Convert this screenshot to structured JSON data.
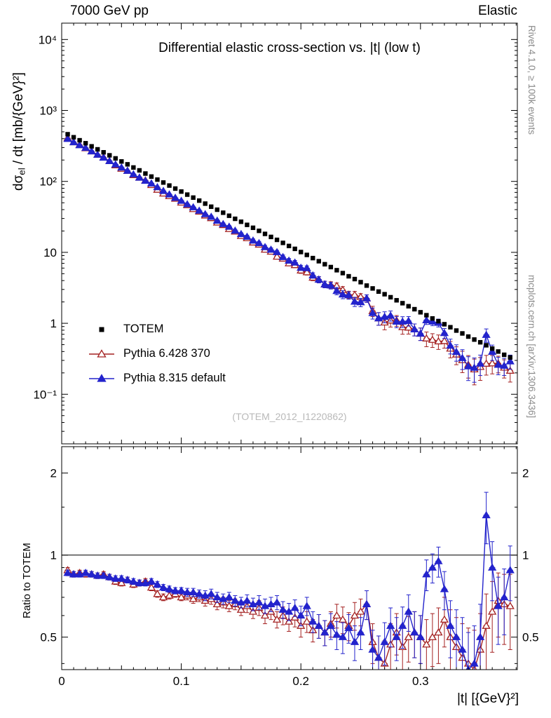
{
  "page": {
    "header_left": "7000 GeV pp",
    "header_right": "Elastic",
    "watermark": "(TOTEM_2012_I1220862)",
    "side_top": "Rivet 4.1.0, ≥ 100k events",
    "side_bottom": "mcplots.cern.ch [arXiv:1306.3436]"
  },
  "chart_data": {
    "type": "scatter",
    "title": "Differential elastic cross-section vs. |t| (low t)",
    "xlabel": "|t| [{GeV}²]",
    "ylabel_top_parts": {
      "pre": "dσ",
      "sub": "el",
      "post": " / dt [mb/{GeV}²]"
    },
    "ylabel_bottom": "Ratio to TOTEM",
    "xlim": [
      0,
      0.381
    ],
    "ylim_top": [
      0.02,
      17000
    ],
    "ylim_bottom": [
      0.38,
      2.5
    ],
    "grid": false,
    "legend_position": "inside-left-middle",
    "x_ticks": [
      {
        "v": 0,
        "label": "0"
      },
      {
        "v": 0.1,
        "label": "0.1"
      },
      {
        "v": 0.2,
        "label": "0.2"
      },
      {
        "v": 0.3,
        "label": "0.3"
      }
    ],
    "y_ticks_top": [
      {
        "v": 0.1,
        "label": "10⁻¹"
      },
      {
        "v": 1,
        "label": "1"
      },
      {
        "v": 10,
        "label": "10"
      },
      {
        "v": 100,
        "label": "10²"
      },
      {
        "v": 1000,
        "label": "10³"
      },
      {
        "v": 10000,
        "label": "10⁴"
      }
    ],
    "y_ticks_bottom": [
      {
        "v": 0.5,
        "label": "0.5"
      },
      {
        "v": 1,
        "label": "1"
      },
      {
        "v": 2,
        "label": "2"
      }
    ],
    "y_minor_ticks_bottom": [
      0.4,
      0.6,
      0.7,
      0.8,
      0.9,
      1.5
    ],
    "ratio_reference": 1,
    "x": [
      0.005,
      0.01,
      0.015,
      0.02,
      0.025,
      0.03,
      0.035,
      0.04,
      0.045,
      0.05,
      0.055,
      0.06,
      0.065,
      0.07,
      0.075,
      0.08,
      0.085,
      0.09,
      0.095,
      0.1,
      0.105,
      0.11,
      0.115,
      0.12,
      0.125,
      0.13,
      0.135,
      0.14,
      0.145,
      0.15,
      0.155,
      0.16,
      0.165,
      0.17,
      0.175,
      0.18,
      0.185,
      0.19,
      0.195,
      0.2,
      0.205,
      0.21,
      0.215,
      0.22,
      0.225,
      0.23,
      0.235,
      0.24,
      0.245,
      0.25,
      0.255,
      0.26,
      0.265,
      0.27,
      0.275,
      0.28,
      0.285,
      0.29,
      0.295,
      0.3,
      0.305,
      0.31,
      0.315,
      0.32,
      0.325,
      0.33,
      0.335,
      0.34,
      0.345,
      0.35,
      0.355,
      0.36,
      0.365,
      0.37,
      0.375
    ],
    "series": [
      {
        "name": "TOTEM",
        "marker": "square",
        "color": "#000000",
        "line": false,
        "y": [
          462,
          419,
          380,
          345,
          312,
          283,
          257,
          233,
          211,
          191,
          174,
          157,
          143,
          129,
          117,
          106,
          96.4,
          87.4,
          79.2,
          71.9,
          65.1,
          59.1,
          53.6,
          48.6,
          44,
          39.9,
          36.2,
          32.8,
          29.7,
          27,
          24.4,
          22.2,
          20.1,
          18.2,
          16.5,
          15,
          13.6,
          12.3,
          11.2,
          10.1,
          9.2,
          8.3,
          7.5,
          6.8,
          6.2,
          5.6,
          5.1,
          4.6,
          4.2,
          3.8,
          3.4,
          3.1,
          2.8,
          2.57,
          2.33,
          2.11,
          1.92,
          1.74,
          1.58,
          1.43,
          1.3,
          1.17,
          1.07,
          0.97,
          0.88,
          0.79,
          0.72,
          0.65,
          0.59,
          0.54,
          0.49,
          0.44,
          0.4,
          0.36,
          0.33
        ]
      },
      {
        "name": "Pythia 6.428 370",
        "marker": "triangle-open",
        "color": "#a42121",
        "line": true,
        "ratio_to_totem": [
          0.88,
          0.85,
          0.86,
          0.85,
          0.85,
          0.84,
          0.85,
          0.83,
          0.8,
          0.79,
          0.81,
          0.78,
          0.79,
          0.8,
          0.76,
          0.72,
          0.7,
          0.71,
          0.72,
          0.7,
          0.71,
          0.69,
          0.7,
          0.68,
          0.69,
          0.66,
          0.67,
          0.65,
          0.66,
          0.63,
          0.65,
          0.62,
          0.64,
          0.6,
          0.62,
          0.58,
          0.6,
          0.57,
          0.59,
          0.55,
          0.57,
          0.53,
          0.55,
          0.52,
          0.56,
          0.6,
          0.58,
          0.55,
          0.6,
          0.62,
          0.66,
          0.48,
          0.42,
          0.4,
          0.47,
          0.52,
          0.46,
          0.5,
          0.52,
          0.5,
          0.47,
          0.5,
          0.52,
          0.58,
          0.5,
          0.46,
          0.42,
          0.4,
          0.38,
          0.45,
          0.55,
          0.62,
          0.68,
          0.66,
          0.65
        ],
        "ratio_err": [
          0.02,
          0.02,
          0.02,
          0.02,
          0.02,
          0.02,
          0.02,
          0.02,
          0.02,
          0.02,
          0.02,
          0.02,
          0.02,
          0.02,
          0.02,
          0.02,
          0.02,
          0.02,
          0.02,
          0.02,
          0.025,
          0.025,
          0.025,
          0.03,
          0.03,
          0.03,
          0.03,
          0.03,
          0.03,
          0.03,
          0.035,
          0.035,
          0.04,
          0.04,
          0.04,
          0.04,
          0.045,
          0.045,
          0.045,
          0.05,
          0.05,
          0.05,
          0.055,
          0.055,
          0.06,
          0.06,
          0.065,
          0.065,
          0.07,
          0.07,
          0.08,
          0.08,
          0.085,
          0.085,
          0.09,
          0.09,
          0.095,
          0.095,
          0.1,
          0.1,
          0.11,
          0.11,
          0.12,
          0.12,
          0.13,
          0.13,
          0.14,
          0.14,
          0.15,
          0.16,
          0.17,
          0.18,
          0.18,
          0.19,
          0.2
        ]
      },
      {
        "name": "Pythia 8.315 default",
        "marker": "triangle-filled",
        "color": "#2323cc",
        "line": true,
        "ratio_to_totem": [
          0.86,
          0.85,
          0.85,
          0.86,
          0.85,
          0.84,
          0.84,
          0.83,
          0.82,
          0.82,
          0.81,
          0.8,
          0.79,
          0.79,
          0.8,
          0.78,
          0.76,
          0.75,
          0.74,
          0.74,
          0.73,
          0.73,
          0.72,
          0.71,
          0.72,
          0.7,
          0.69,
          0.7,
          0.68,
          0.67,
          0.68,
          0.66,
          0.67,
          0.65,
          0.66,
          0.67,
          0.63,
          0.62,
          0.64,
          0.6,
          0.65,
          0.57,
          0.55,
          0.52,
          0.55,
          0.51,
          0.5,
          0.54,
          0.48,
          0.52,
          0.66,
          0.45,
          0.42,
          0.48,
          0.55,
          0.5,
          0.55,
          0.62,
          0.52,
          0.5,
          0.85,
          0.9,
          0.95,
          0.75,
          0.55,
          0.5,
          0.45,
          0.38,
          0.4,
          0.5,
          1.4,
          0.9,
          0.65,
          0.7,
          0.88
        ],
        "ratio_err": [
          0.02,
          0.02,
          0.02,
          0.02,
          0.02,
          0.02,
          0.02,
          0.02,
          0.02,
          0.02,
          0.02,
          0.02,
          0.02,
          0.02,
          0.02,
          0.02,
          0.02,
          0.02,
          0.02,
          0.02,
          0.025,
          0.025,
          0.025,
          0.03,
          0.03,
          0.03,
          0.03,
          0.03,
          0.03,
          0.03,
          0.035,
          0.035,
          0.04,
          0.04,
          0.04,
          0.04,
          0.045,
          0.045,
          0.045,
          0.05,
          0.05,
          0.05,
          0.055,
          0.055,
          0.06,
          0.06,
          0.065,
          0.065,
          0.07,
          0.07,
          0.08,
          0.08,
          0.085,
          0.085,
          0.09,
          0.09,
          0.095,
          0.095,
          0.1,
          0.1,
          0.11,
          0.11,
          0.12,
          0.12,
          0.13,
          0.13,
          0.14,
          0.14,
          0.15,
          0.16,
          0.3,
          0.22,
          0.18,
          0.19,
          0.2
        ]
      }
    ]
  },
  "legend": {
    "items": [
      {
        "label": "TOTEM"
      },
      {
        "label": "Pythia 6.428 370"
      },
      {
        "label": "Pythia 8.315 default"
      }
    ]
  }
}
